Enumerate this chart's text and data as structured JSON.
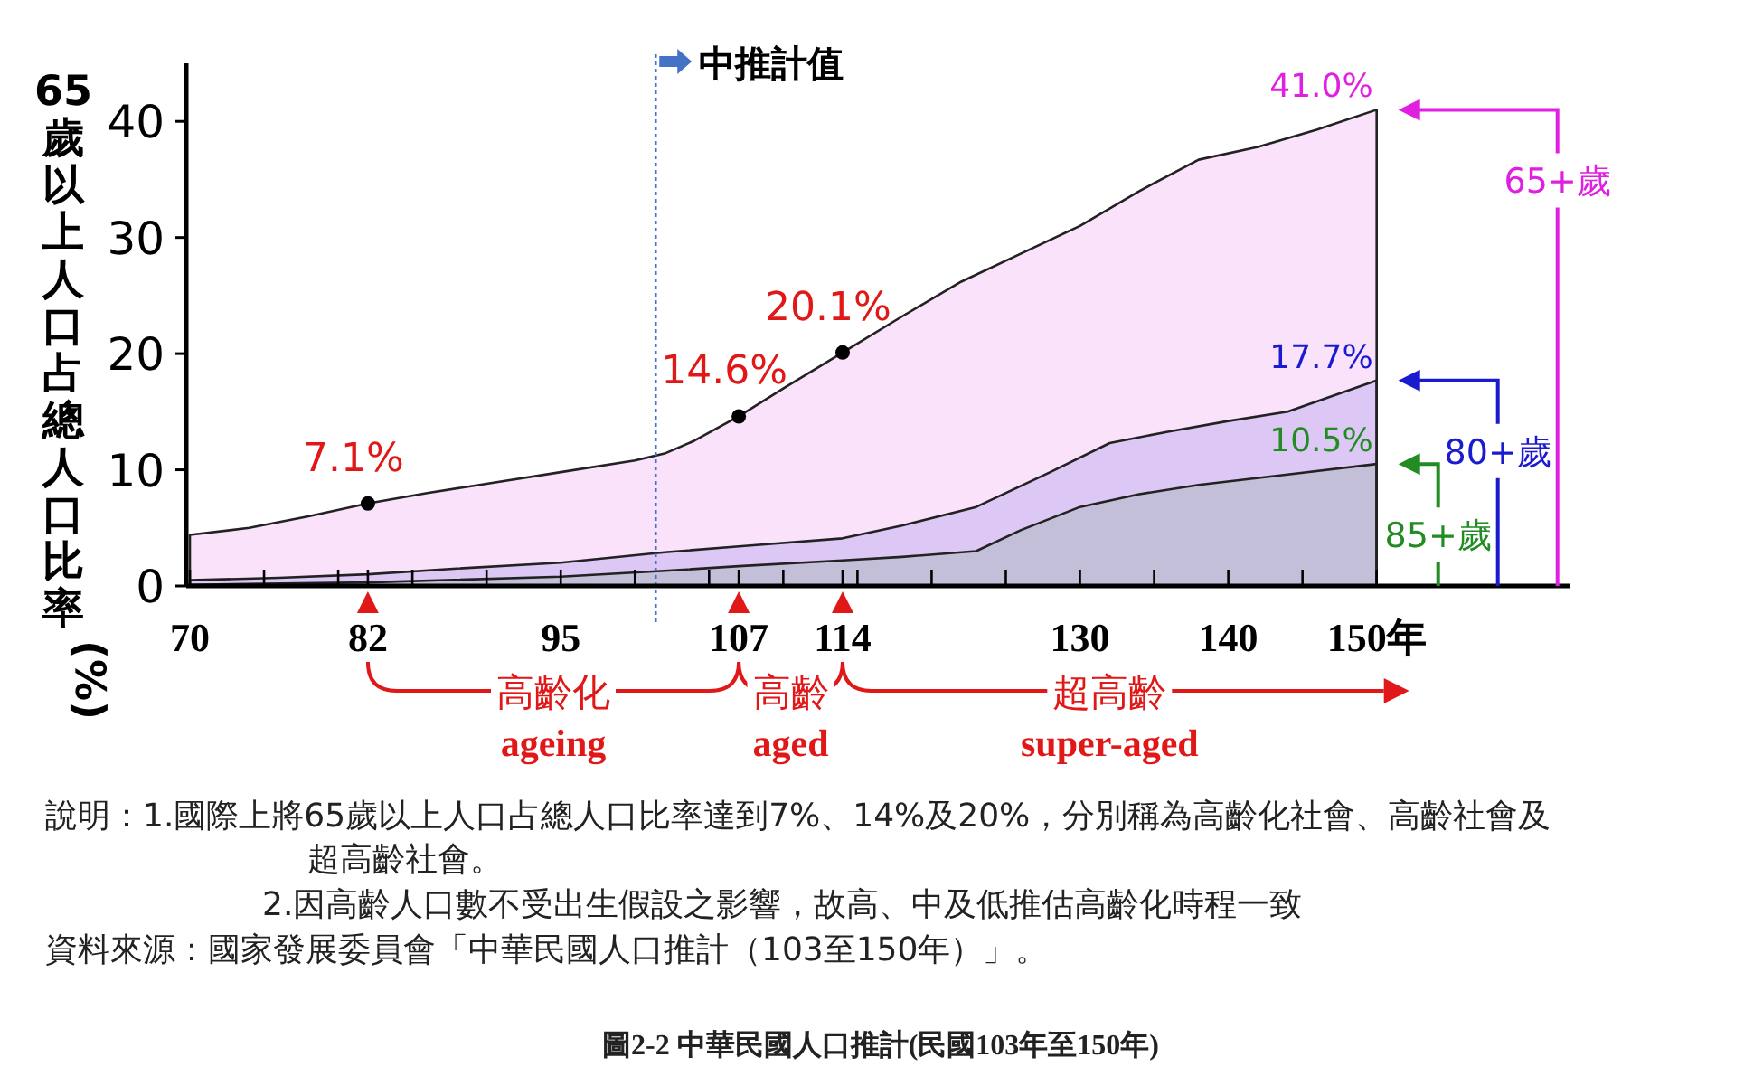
{
  "chart_data": {
    "type": "area",
    "ylabel": "65歲以上人口占總人口比率(%)",
    "xlim": [
      70,
      163
    ],
    "xticks": [
      {
        "value": 70,
        "label": "70"
      },
      {
        "value": 75,
        "label": null
      },
      {
        "value": 80,
        "label": null
      },
      {
        "value": 82,
        "label": "82"
      },
      {
        "value": 85,
        "label": null
      },
      {
        "value": 90,
        "label": null
      },
      {
        "value": 95,
        "label": "95"
      },
      {
        "value": 100,
        "label": null
      },
      {
        "value": 105,
        "label": null
      },
      {
        "value": 107,
        "label": "107"
      },
      {
        "value": 110,
        "label": null
      },
      {
        "value": 114,
        "label": "114"
      },
      {
        "value": 115,
        "label": null
      },
      {
        "value": 120,
        "label": null
      },
      {
        "value": 125,
        "label": null
      },
      {
        "value": 130,
        "label": "130"
      },
      {
        "value": 135,
        "label": null
      },
      {
        "value": 140,
        "label": "140"
      },
      {
        "value": 145,
        "label": null
      },
      {
        "value": 150,
        "label": "150年"
      }
    ],
    "ylim": [
      0,
      45
    ],
    "yticks": [
      0,
      10,
      20,
      30,
      40
    ],
    "grid": false,
    "legend": "right",
    "series": [
      {
        "name": "65+歲",
        "color": "#e020e0",
        "x": [
          70,
          74,
          78,
          82,
          86,
          90,
          95,
          100,
          102,
          104,
          107,
          110,
          114,
          118,
          122,
          126,
          130,
          134,
          138,
          142,
          146,
          150
        ],
        "values": [
          4.4,
          5.0,
          6.0,
          7.1,
          8.0,
          8.8,
          9.8,
          10.8,
          11.4,
          12.5,
          14.6,
          17.0,
          20.1,
          23.2,
          26.2,
          28.6,
          31.0,
          34.0,
          36.7,
          37.8,
          39.3,
          41.0
        ],
        "value_labels": [
          null,
          null,
          null,
          null,
          null,
          null,
          null,
          null,
          null,
          null,
          null,
          null,
          null,
          null,
          null,
          null,
          null,
          null,
          null,
          null,
          null,
          "41.0%"
        ]
      },
      {
        "name": "80+歲",
        "color": "#1a1ad0",
        "x": [
          70,
          76,
          82,
          88,
          95,
          102,
          107,
          114,
          118,
          123,
          128,
          132,
          136,
          140,
          144,
          150
        ],
        "values": [
          0.5,
          0.7,
          1.0,
          1.5,
          2.0,
          2.9,
          3.4,
          4.1,
          5.2,
          6.8,
          9.8,
          12.3,
          13.3,
          14.2,
          15.0,
          17.7
        ],
        "value_labels": [
          null,
          null,
          null,
          null,
          null,
          null,
          null,
          null,
          null,
          null,
          null,
          null,
          null,
          null,
          null,
          "17.7%"
        ]
      },
      {
        "name": "85+歲",
        "color": "#228b22",
        "x": [
          70,
          82,
          95,
          102,
          107,
          114,
          118,
          123,
          126,
          130,
          134,
          138,
          144,
          150
        ],
        "values": [
          0.1,
          0.3,
          0.8,
          1.3,
          1.7,
          2.2,
          2.5,
          3.0,
          4.8,
          6.8,
          7.9,
          8.7,
          9.6,
          10.5
        ],
        "value_labels": [
          null,
          null,
          null,
          null,
          null,
          null,
          null,
          null,
          null,
          null,
          null,
          null,
          null,
          "10.5%"
        ]
      },
      {
        "type": "scatter",
        "color": "#000000",
        "marker": "circle",
        "x": [
          82,
          107,
          114
        ],
        "values": [
          7.1,
          14.6,
          20.1
        ],
        "value_labels": [
          "7.1%",
          "14.6%",
          "20.1%"
        ]
      }
    ],
    "ref_lines": [
      {
        "axis": "x",
        "value": 101.4,
        "label": "中推計值",
        "color": "#4472c4",
        "line_style": "dotted"
      }
    ],
    "annotations": [
      "高齡化",
      "ageing",
      "高齡",
      "aged",
      "超高齡",
      "super-aged",
      "說明：1.國際上將65歲以上人口占總人口比率達到7%、14%及20%，分別稱為高齡化社會、高齡社會及超高齡社會。",
      "2.因高齡人口數不受出生假設之影響，故高、中及低推估高齡化時程一致",
      "資料來源：國家發展委員會「中華民國人口推計（103至150年）」。",
      "圖2-2 中華民國人口推計(民國103年至150年)"
    ]
  }
}
